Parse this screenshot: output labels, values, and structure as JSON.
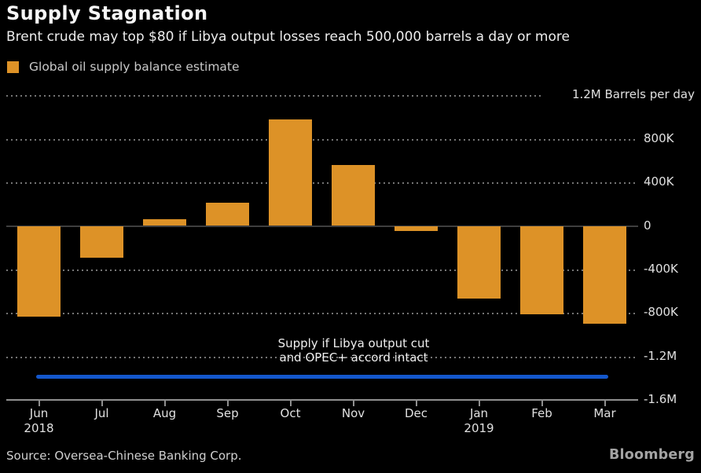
{
  "header": {
    "title": "Supply Stagnation",
    "subtitle": "Brent crude may top $80 if Libya output losses reach 500,000 barrels a day or more"
  },
  "legend": {
    "label": "Global oil supply balance estimate",
    "swatch_color": "#dd9227"
  },
  "chart_data": {
    "type": "bar",
    "title": "Supply Stagnation",
    "series_name": "Global oil supply balance estimate",
    "units": "Barrels per day",
    "categories": [
      "Jun",
      "Jul",
      "Aug",
      "Sep",
      "Oct",
      "Nov",
      "Dec",
      "Jan",
      "Feb",
      "Mar"
    ],
    "year_labels": [
      "2018",
      "",
      "",
      "",
      "",
      "",
      "",
      "2019",
      "",
      ""
    ],
    "values": [
      -835000,
      -290000,
      60000,
      215000,
      980000,
      560000,
      -50000,
      -670000,
      -810000,
      -900000
    ],
    "bar_color": "#dd9227",
    "ylim": [
      -1600000,
      1200000
    ],
    "ytick_step": 400000,
    "yticks": [
      {
        "value": 1200000,
        "label": "1.2M Barrels per day"
      },
      {
        "value": 800000,
        "label": "800K"
      },
      {
        "value": 400000,
        "label": "400K"
      },
      {
        "value": 0,
        "label": "0"
      },
      {
        "value": -400000,
        "label": "-400K"
      },
      {
        "value": -800000,
        "label": "-800K"
      },
      {
        "value": -1200000,
        "label": "-1.2M"
      },
      {
        "value": -1600000,
        "label": "-1.6M"
      }
    ],
    "grid": "dotted-horizontal",
    "legend_position": "top-left",
    "reference_line": {
      "value": -1390000,
      "color": "#1457cc",
      "label_lines": [
        "Supply if Libya output cut",
        "and OPEC+ accord intact"
      ]
    }
  },
  "footer": {
    "source": "Source: Oversea-Chinese Banking Corp.",
    "brand": "Bloomberg"
  }
}
